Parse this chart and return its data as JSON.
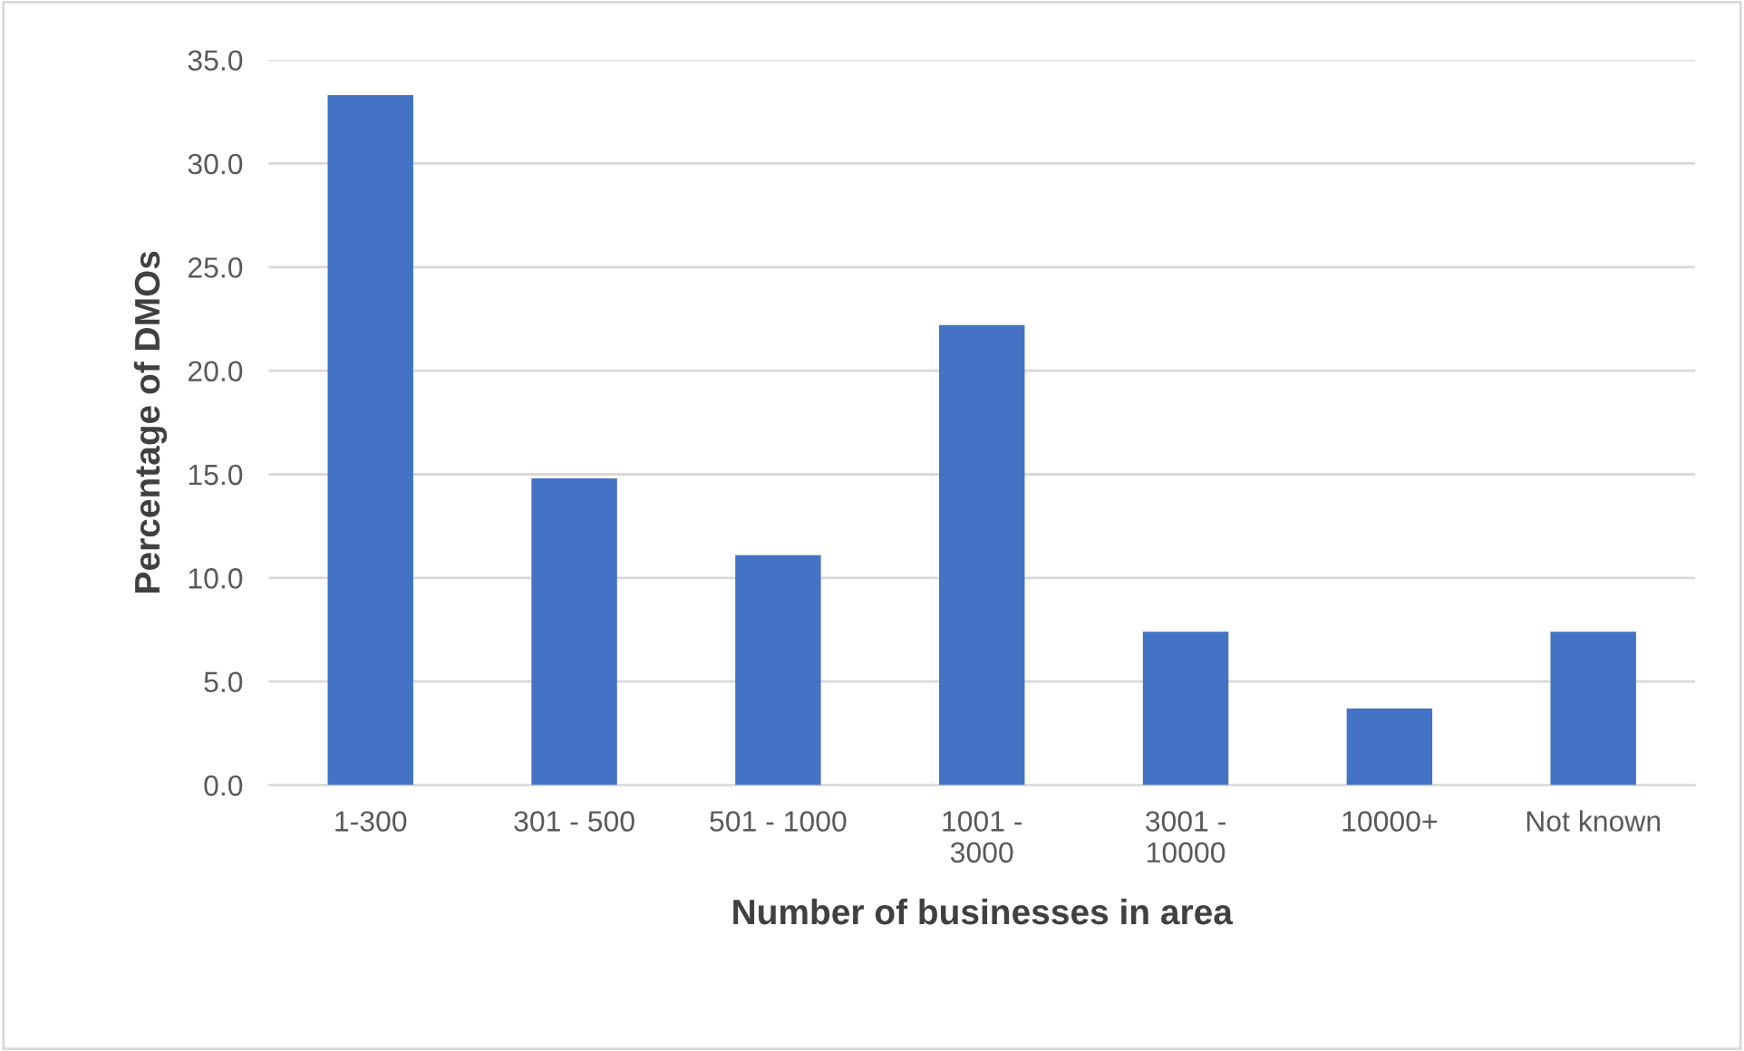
{
  "chart_data": {
    "type": "bar",
    "xlabel": "Number of businesses in area",
    "ylabel": "Percentage of DMOs",
    "categories": [
      "1-300",
      "301 - 500",
      "501 - 1000",
      "1001 - 3000",
      "3001 - 10000",
      "10000+",
      "Not known"
    ],
    "values": [
      33.3,
      14.8,
      11.1,
      22.2,
      7.4,
      3.7,
      7.4
    ],
    "color": "#4472c4",
    "ylim": [
      0,
      35
    ],
    "yticks": [
      {
        "value": 0,
        "label": "0.0"
      },
      {
        "value": 5,
        "label": "5.0"
      },
      {
        "value": 10,
        "label": "10.0"
      },
      {
        "value": 15,
        "label": "15.0"
      },
      {
        "value": 20,
        "label": "20.0"
      },
      {
        "value": 25,
        "label": "25.0"
      },
      {
        "value": 30,
        "label": "30.0"
      },
      {
        "value": 35,
        "label": "35.0"
      }
    ],
    "grid": "y"
  }
}
